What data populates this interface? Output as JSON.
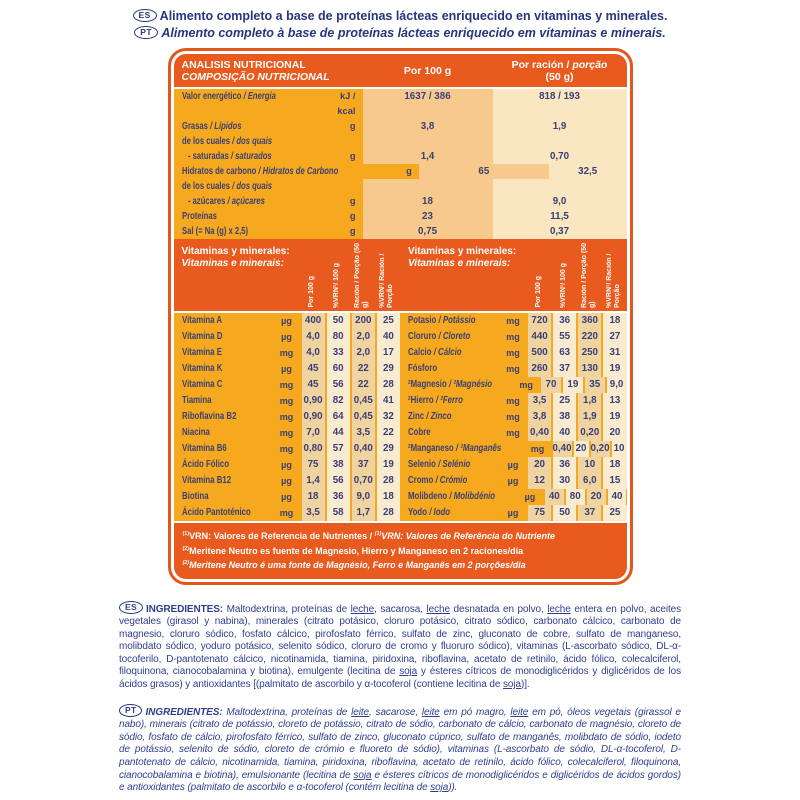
{
  "page": {
    "badge_es": "ES",
    "badge_pt": "PT",
    "intro_es": "Alimento completo a base de proteínas lácteas enriquecido en vitaminas y minerales.",
    "intro_pt": "Alimento completo à base de proteínas lácteas enriquecido em vitaminas e minerais."
  },
  "colors": {
    "band_orange": "#e85a1e",
    "border_orange": "#e2571b",
    "gold": "#f6a91e",
    "peach": "#f8c98d",
    "cream": "#fbe6c2",
    "tan": "#efd3a0",
    "light_cream": "#f9ebcf",
    "ink_navy": "#2f3f8f",
    "table_ink": "#3a3f75",
    "white": "#ffffff"
  },
  "table": {
    "header": {
      "title_es": "ANALISIS NUTRICIONAL",
      "title_pt": "COMPOSIÇÃO NUTRICIONAL",
      "col_100": "Por 100 g",
      "col_racion_segments": [
        {
          "t": "Por ración / "
        },
        {
          "t": "porção",
          "i": true
        },
        {
          "br": true
        },
        {
          "t": "(50 g)"
        }
      ]
    },
    "macros": {
      "rows": [
        {
          "es": "Valor energético",
          "pt": "Energia",
          "unit": "kJ / kcal",
          "v100": "1637 / 386",
          "vrac": "818 / 193"
        },
        {
          "es": "Grasas",
          "pt": "Lípidos",
          "unit": "g",
          "v100": "3,8",
          "vrac": "1,9"
        },
        {
          "es": "de los cuales",
          "pt": "dos quais",
          "unit": "",
          "v100": "",
          "vrac": ""
        },
        {
          "es": "- saturadas",
          "pt": "saturados",
          "unit": "g",
          "v100": "1,4",
          "vrac": "0,70",
          "indent": true
        },
        {
          "es": "Hidratos de carbono",
          "pt": "Hidratos de Carbono",
          "unit": "g",
          "v100": "65",
          "vrac": "32,5"
        },
        {
          "es": "de los cuales",
          "pt": "dos quais",
          "unit": "",
          "v100": "",
          "vrac": ""
        },
        {
          "es": "- azúcares",
          "pt": "açúcares",
          "unit": "g",
          "v100": "18",
          "vrac": "9,0",
          "indent": true
        },
        {
          "es": "Proteínas",
          "pt": "",
          "unit": "g",
          "v100": "23",
          "vrac": "11,5"
        },
        {
          "es": "Sal (= Na (g) x 2,5)",
          "pt": "",
          "unit": "g",
          "v100": "0,75",
          "vrac": "0,37"
        }
      ]
    },
    "micros": {
      "header_es": "Vitaminas y minerales:",
      "header_pt": "Vitaminas e minerais:",
      "col_headers": [
        {
          "label": "Por 100 g"
        },
        {
          "label": "%VRN¹/ 100 g"
        },
        {
          "label": "Ración / Porção (50 g)"
        },
        {
          "label": "%VRN¹/ Ración / Porção"
        }
      ],
      "vitamins": [
        {
          "name": "Vitamina A",
          "unit": "µg",
          "v100": "400",
          "vrn100": "50",
          "vrac": "200",
          "vrnrac": "25"
        },
        {
          "name": "Vitamina D",
          "unit": "µg",
          "v100": "4,0",
          "vrn100": "80",
          "vrac": "2,0",
          "vrnrac": "40"
        },
        {
          "name": "Vitamina E",
          "unit": "mg",
          "v100": "4,0",
          "vrn100": "33",
          "vrac": "2,0",
          "vrnrac": "17"
        },
        {
          "name": "Vitamina K",
          "unit": "µg",
          "v100": "45",
          "vrn100": "60",
          "vrac": "22",
          "vrnrac": "29"
        },
        {
          "name": "Vitamina C",
          "unit": "mg",
          "v100": "45",
          "vrn100": "56",
          "vrac": "22",
          "vrnrac": "28"
        },
        {
          "name": "Tiamina",
          "unit": "mg",
          "v100": "0,90",
          "vrn100": "82",
          "vrac": "0,45",
          "vrnrac": "41"
        },
        {
          "name": "Riboflavina B2",
          "unit": "mg",
          "v100": "0,90",
          "vrn100": "64",
          "vrac": "0,45",
          "vrnrac": "32"
        },
        {
          "name": "Niacina",
          "unit": "mg",
          "v100": "7,0",
          "vrn100": "44",
          "vrac": "3,5",
          "vrnrac": "22"
        },
        {
          "name": "Vitamina B6",
          "unit": "mg",
          "v100": "0,80",
          "vrn100": "57",
          "vrac": "0,40",
          "vrnrac": "29"
        },
        {
          "name": "Ácido Fólico",
          "unit": "µg",
          "v100": "75",
          "vrn100": "38",
          "vrac": "37",
          "vrnrac": "19"
        },
        {
          "name": "Vitamina B12",
          "unit": "µg",
          "v100": "1,4",
          "vrn100": "56",
          "vrac": "0,70",
          "vrnrac": "28"
        },
        {
          "name": "Biotina",
          "unit": "µg",
          "v100": "18",
          "vrn100": "36",
          "vrac": "9,0",
          "vrnrac": "18"
        },
        {
          "name": "Ácido Pantoténico",
          "unit": "mg",
          "v100": "3,5",
          "vrn100": "58",
          "vrac": "1,7",
          "vrnrac": "28"
        }
      ],
      "minerals": [
        {
          "es": "Potasio",
          "pt": "Potássio",
          "unit": "mg",
          "v100": "720",
          "vrn100": "36",
          "vrac": "360",
          "vrnrac": "18"
        },
        {
          "es": "Cloruro",
          "pt": "Cloreto",
          "unit": "mg",
          "v100": "440",
          "vrn100": "55",
          "vrac": "220",
          "vrnrac": "27"
        },
        {
          "es": "Calcio",
          "pt": "Cálcio",
          "unit": "mg",
          "v100": "500",
          "vrn100": "63",
          "vrac": "250",
          "vrnrac": "31"
        },
        {
          "es": "Fósforo",
          "pt": "",
          "unit": "mg",
          "v100": "260",
          "vrn100": "37",
          "vrac": "130",
          "vrnrac": "19"
        },
        {
          "es": "²Magnesio",
          "pt": "²Magnésio",
          "unit": "mg",
          "v100": "70",
          "vrn100": "19",
          "vrac": "35",
          "vrnrac": "9,0"
        },
        {
          "es": "²Hierro",
          "pt": "²Ferro",
          "unit": "mg",
          "v100": "3,5",
          "vrn100": "25",
          "vrac": "1,8",
          "vrnrac": "13"
        },
        {
          "es": "Zinc",
          "pt": "Zinco",
          "unit": "mg",
          "v100": "3,8",
          "vrn100": "38",
          "vrac": "1,9",
          "vrnrac": "19"
        },
        {
          "es": "Cobre",
          "pt": "",
          "unit": "mg",
          "v100": "0,40",
          "vrn100": "40",
          "vrac": "0,20",
          "vrnrac": "20"
        },
        {
          "es": "²Manganeso",
          "pt": "²Manganês",
          "unit": "mg",
          "v100": "0,40",
          "vrn100": "20",
          "vrac": "0,20",
          "vrnrac": "10"
        },
        {
          "es": "Selenio",
          "pt": "Selénio",
          "unit": "µg",
          "v100": "20",
          "vrn100": "36",
          "vrac": "10",
          "vrnrac": "18"
        },
        {
          "es": "Cromo",
          "pt": "Crómio",
          "unit": "µg",
          "v100": "12",
          "vrn100": "30",
          "vrac": "6,0",
          "vrnrac": "15"
        },
        {
          "es": "Molibdeno",
          "pt": "Molibdénio",
          "unit": "µg",
          "v100": "40",
          "vrn100": "80",
          "vrac": "20",
          "vrnrac": "40"
        },
        {
          "es": "Yodo",
          "pt": "Iodo",
          "unit": "µg",
          "v100": "75",
          "vrn100": "50",
          "vrac": "37",
          "vrnrac": "25"
        }
      ]
    },
    "footnotes": {
      "line1": [
        {
          "t": "(1)",
          "sup": true
        },
        {
          "t": "VRN: Valores de Referencia de Nutrientes / "
        },
        {
          "t": "(1)",
          "sup": true,
          "i": true
        },
        {
          "t": "VRN: Valores de Referência do Nutriente",
          "i": true
        }
      ],
      "line2": [
        {
          "t": "(2)",
          "sup": true
        },
        {
          "t": "Meritene Neutro es fuente de Magnesio, Hierro y Manganeso en 2 raciones/día"
        }
      ],
      "line3": [
        {
          "t": "(2)",
          "sup": true,
          "i": true
        },
        {
          "t": "Meritene Neutro é uma fonte de Magnésio, Ferro e Manganês em 2 porções/dia",
          "i": true
        }
      ]
    }
  },
  "ingredients_es": {
    "segments": [
      {
        "t": "INGREDIENTES: ",
        "b": true
      },
      {
        "t": "Maltodextrina, proteínas de "
      },
      {
        "t": "leche",
        "u": true
      },
      {
        "t": ", sacarosa, "
      },
      {
        "t": "leche",
        "u": true
      },
      {
        "t": " desnatada en polvo, "
      },
      {
        "t": "leche",
        "u": true
      },
      {
        "t": " entera en polvo, aceites vegetales (girasol y nabina), minerales (citrato potásico, cloruro potásico, citrato sódico, carbonato cálcico, carbonato de magnesio, cloruro sódico, fosfato cálcico, pirofosfato férrico, sulfato de zinc, gluconato de cobre, sulfato de manganeso, molibdato sódico, yoduro potásico, selenito sódico, cloruro de cromo y fluoruro sódico), vitaminas (L-ascorbato sódico, DL-α-tocoferilo, D-pantotenato cálcico, nicotinamida, tiamina, piridoxina, riboflavina, acetato de retinilo, ácido fólico, colecalciferol, filoquinona, cianocobalamina y biotina), emulgente (lecitina de "
      },
      {
        "t": "soja",
        "u": true
      },
      {
        "t": " y ésteres cítricos de monodiglicéridos y diglicéridos de los ácidos grasos) y antioxidantes [(palmitato de ascorbilo y α-tocoferol (contiene lecitina de "
      },
      {
        "t": "soja",
        "u": true
      },
      {
        "t": ")]."
      }
    ]
  },
  "ingredients_pt": {
    "segments": [
      {
        "t": "INGREDIENTES: ",
        "b": true
      },
      {
        "t": "Maltodextrina, proteínas de "
      },
      {
        "t": "leite",
        "u": true
      },
      {
        "t": ", sacarose, "
      },
      {
        "t": "leite",
        "u": true
      },
      {
        "t": " em pó magro, "
      },
      {
        "t": "leite",
        "u": true
      },
      {
        "t": " em pó, óleos vegetais (girassol e nabo), minerais (citrato de potássio, cloreto de potássio, citrato de sódio, carbonato de cálcio, carbonato de magnésio, cloreto de sódio, fosfato de cálcio, pirofosfato férrico, sulfato de zinco, gluconato cúprico, sulfato de manganês, molibdato de sódio, iodeto de potássio, selenito de sódio, cloreto de crómio e fluoreto de sódio), vitaminas (L-ascorbato de sódio, DL-α-tocoferol, D-pantotenato de cálcio, nicotinamida, tiamina, piridoxina, riboflavina, acetato de retinilo, ácido fólico, colecalciferol, filoquinona, cianocobalamina e biotina), emulsionante (lecitina de "
      },
      {
        "t": "soja",
        "u": true
      },
      {
        "t": " e ésteres cítricos de monodiglicéridos e diglicéridos de ácidos gordos) e antioxidantes (palmitato de ascorbilo e α-tocoferol (contém lecitina de "
      },
      {
        "t": "soja",
        "u": true
      },
      {
        "t": "))."
      }
    ]
  }
}
